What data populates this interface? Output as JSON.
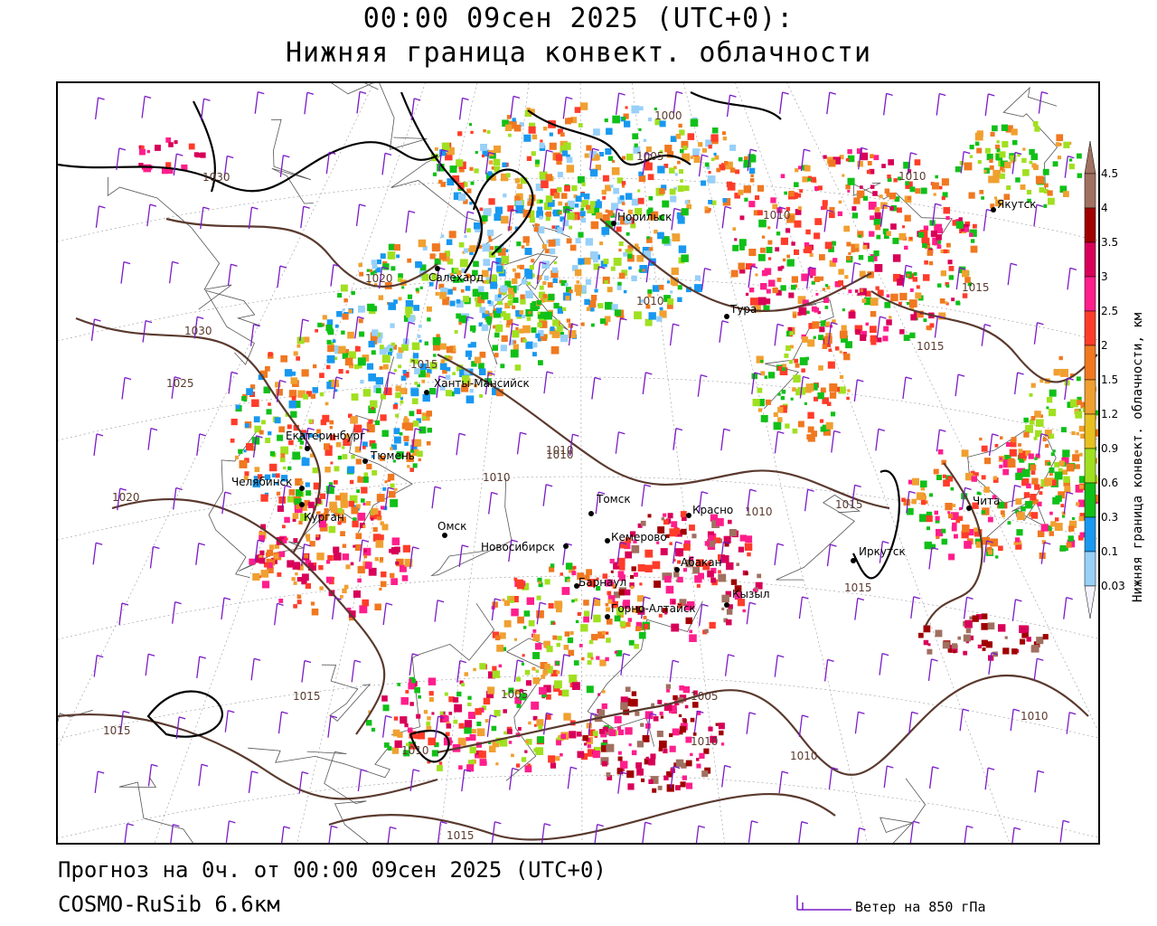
{
  "header": {
    "title_line1": "00:00 09сен 2025 (UTC+0):",
    "title_line2": "Нижняя граница конвект. облачности"
  },
  "legend": {
    "title": "Нижняя граница конвект. облачности, км",
    "levels": [
      {
        "value": "4.5",
        "color": "#a07060"
      },
      {
        "value": "4",
        "color": "#a00000"
      },
      {
        "value": "3.5",
        "color": "#d80058"
      },
      {
        "value": "3",
        "color": "#ff1e8c"
      },
      {
        "value": "2.5",
        "color": "#ff3c2a"
      },
      {
        "value": "2",
        "color": "#f07820"
      },
      {
        "value": "1.5",
        "color": "#f0a030"
      },
      {
        "value": "1.2",
        "color": "#e8c020"
      },
      {
        "value": "0.9",
        "color": "#a0e020"
      },
      {
        "value": "0.6",
        "color": "#10c018"
      },
      {
        "value": "0.3",
        "color": "#1898f0"
      },
      {
        "value": "0.1",
        "color": "#98d0f8"
      },
      {
        "value": "0.03",
        "color": "#d8d8f8"
      }
    ]
  },
  "cities": [
    {
      "name": "Салехард"
    },
    {
      "name": "Норильск"
    },
    {
      "name": "Тура"
    },
    {
      "name": "Якутск"
    },
    {
      "name": "Ханты-Мансийск"
    },
    {
      "name": "Екатеринбург"
    },
    {
      "name": "Тюмень"
    },
    {
      "name": "Челябинск"
    },
    {
      "name": "Курган"
    },
    {
      "name": "Омск"
    },
    {
      "name": "Томск"
    },
    {
      "name": "Красно"
    },
    {
      "name": "Новосибирск"
    },
    {
      "name": "Кемерово"
    },
    {
      "name": "Абакан"
    },
    {
      "name": "Барнаул"
    },
    {
      "name": "Горно-Алтайск"
    },
    {
      "name": "Кызыл"
    },
    {
      "name": "Иркутск"
    },
    {
      "name": "Чита"
    }
  ],
  "isobar_labels": [
    "1000",
    "1005",
    "1010",
    "1015",
    "1020",
    "1025",
    "1030"
  ],
  "colors": {
    "isobar": "#5a3a2e",
    "coast": "#000000",
    "wind_barb": "#7a1ac8",
    "border": "#555555"
  },
  "footer": {
    "forecast": "Прогноз на 0ч. от 00:00 09сен 2025 (UTC+0)",
    "model": "COSMO-RuSib 6.6км",
    "wind_legend": "Ветер на 850 гПа"
  }
}
